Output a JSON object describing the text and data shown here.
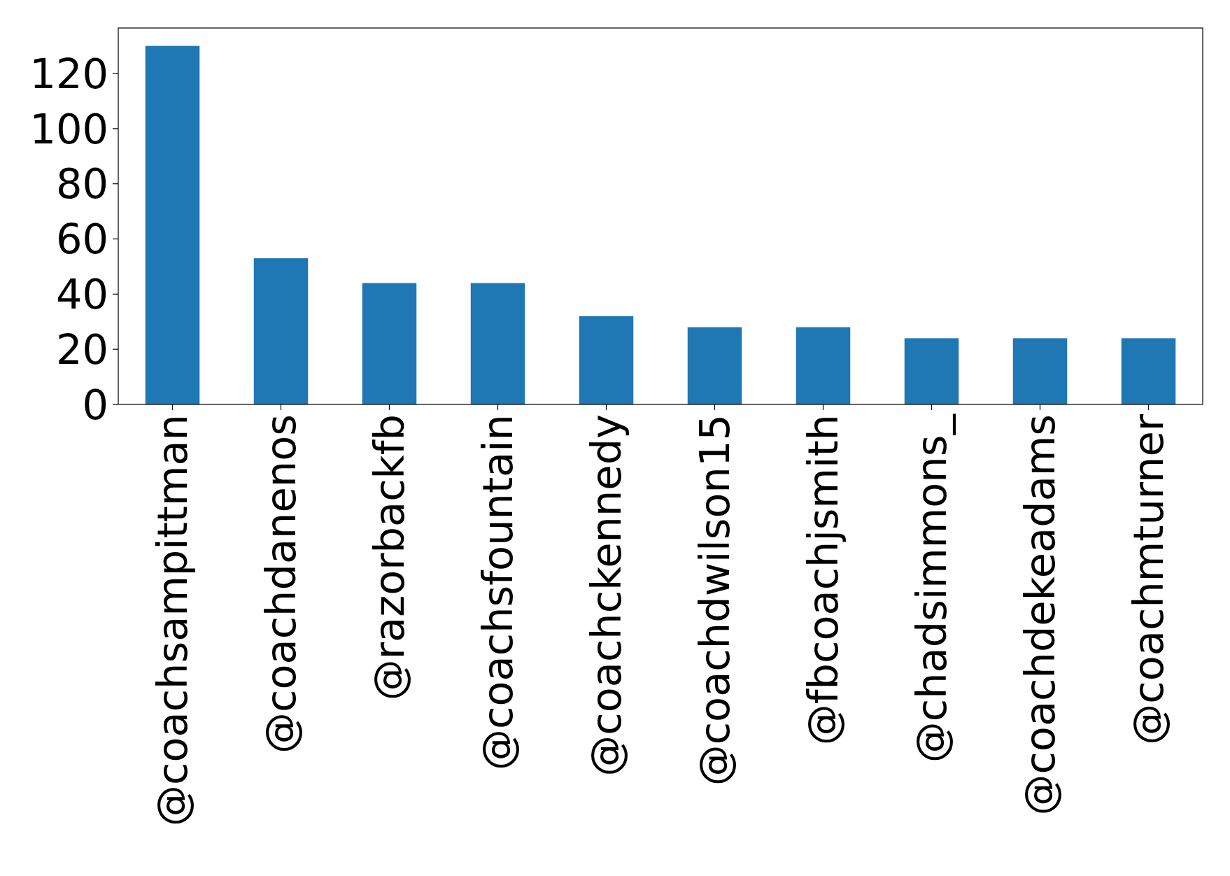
{
  "chart_data": {
    "type": "bar",
    "categories": [
      "@coachsampittman",
      "@coachdanenos",
      "@razorbackfb",
      "@coachsfountain",
      "@coachckennedy",
      "@coachdwilson15",
      "@fbcoachjsmith",
      "@chadsimmons_",
      "@coachdekeadams",
      "@coachmturner"
    ],
    "values": [
      130,
      53,
      44,
      44,
      32,
      28,
      28,
      24,
      24,
      24
    ],
    "color": "#1f77b4",
    "ylim": [
      0,
      136.5
    ],
    "yticks": [
      0,
      20,
      40,
      60,
      80,
      100,
      120
    ],
    "grid": false
  }
}
